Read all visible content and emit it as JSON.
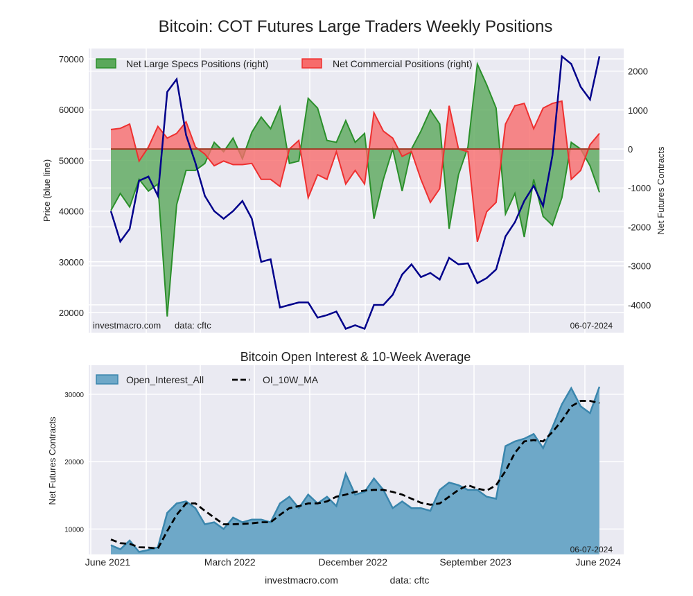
{
  "title": "Bitcoin: COT Futures Large Traders Weekly Positions",
  "colors": {
    "background": "#eaeaf2",
    "price": "#00008b",
    "specs_fill": "#5aa85a",
    "specs_line": "#2a8f2a",
    "comm_fill": "#f76b6b",
    "comm_line": "#ee3030",
    "oi_fill": "#6ea8c8",
    "oi_line": "#3a86ad",
    "ma_line": "#000000"
  },
  "chart_data": [
    {
      "type": "line",
      "title": "Bitcoin: COT Futures Large Traders Weekly Positions",
      "ylabel": "Price (blue line)",
      "y2label": "Net Futures Contracts",
      "ylim": [
        16040,
        72050
      ],
      "y2lim": [
        -4715,
        2580
      ],
      "yticks": [
        "20000",
        "30000",
        "40000",
        "50000",
        "60000",
        "70000"
      ],
      "y2ticks": [
        "-4000",
        "-3000",
        "-2000",
        "-1000",
        "0",
        "1000",
        "2000"
      ],
      "grid": true,
      "legend_position": "top-left",
      "legend": [
        "Net Large Specs Positions (right)",
        "Net Commercial Positions (right)"
      ],
      "annotations": {
        "source": "investmacro.com",
        "data": "data: cftc",
        "date": "06-07-2024"
      },
      "x": [
        "2021-06-08",
        "2021-06-29",
        "2021-07-20",
        "2021-08-10",
        "2021-08-31",
        "2021-09-21",
        "2021-10-12",
        "2021-11-02",
        "2021-11-23",
        "2021-12-14",
        "2022-01-04",
        "2022-01-25",
        "2022-02-15",
        "2022-03-08",
        "2022-03-29",
        "2022-04-19",
        "2022-05-10",
        "2022-05-31",
        "2022-06-21",
        "2022-07-12",
        "2022-08-02",
        "2022-08-23",
        "2022-09-13",
        "2022-10-04",
        "2022-10-25",
        "2022-11-15",
        "2022-12-06",
        "2022-12-27",
        "2023-01-17",
        "2023-02-07",
        "2023-02-28",
        "2023-03-21",
        "2023-04-11",
        "2023-05-02",
        "2023-05-23",
        "2023-06-13",
        "2023-07-04",
        "2023-07-25",
        "2023-08-15",
        "2023-09-05",
        "2023-09-26",
        "2023-10-17",
        "2023-11-07",
        "2023-11-28",
        "2023-12-19",
        "2024-01-09",
        "2024-01-30",
        "2024-02-20",
        "2024-03-12",
        "2024-04-02",
        "2024-04-23",
        "2024-05-14",
        "2024-06-04"
      ],
      "series": [
        {
          "name": "Price (blue line)",
          "axis": "left",
          "values": [
            40000,
            34000,
            36500,
            46000,
            46800,
            43000,
            63500,
            66000,
            55000,
            49500,
            43000,
            40000,
            38500,
            40000,
            42000,
            38500,
            30000,
            30500,
            21000,
            21500,
            22000,
            22000,
            19000,
            19500,
            20200,
            16800,
            17500,
            16800,
            21500,
            21500,
            23500,
            27500,
            29500,
            27000,
            27800,
            26500,
            30800,
            29500,
            29700,
            25800,
            26800,
            28500,
            35000,
            37800,
            42000,
            45000,
            41000,
            51000,
            70500,
            69000,
            64500,
            62000,
            70500
          ]
        },
        {
          "name": "Net Large Specs Positions (right)",
          "axis": "right",
          "values": [
            -1580,
            -1140,
            -1490,
            -780,
            -1080,
            -900,
            -4300,
            -1430,
            -550,
            -550,
            -370,
            170,
            -70,
            280,
            -250,
            430,
            820,
            520,
            1080,
            -370,
            -310,
            1300,
            1050,
            220,
            170,
            730,
            170,
            400,
            -1790,
            -780,
            0,
            -1080,
            0,
            460,
            1000,
            640,
            -2050,
            -660,
            50,
            2180,
            1650,
            1050,
            -1670,
            -1140,
            -2260,
            -780,
            -1730,
            -1960,
            -1250,
            170,
            0,
            -430,
            -1110
          ]
        },
        {
          "name": "Net Commercial Positions (right)",
          "axis": "right",
          "values": [
            500,
            530,
            640,
            -310,
            50,
            580,
            280,
            400,
            700,
            50,
            -130,
            -430,
            -310,
            -400,
            -400,
            -370,
            -780,
            -780,
            -960,
            0,
            220,
            -1250,
            -660,
            -780,
            -70,
            -900,
            -550,
            -900,
            930,
            460,
            280,
            -190,
            -70,
            -780,
            -1370,
            -1020,
            1110,
            0,
            -70,
            -2380,
            -1610,
            -1370,
            640,
            1110,
            1170,
            520,
            1050,
            1170,
            1230,
            -780,
            -550,
            110,
            400
          ]
        }
      ]
    },
    {
      "type": "area",
      "title": "Bitcoin Open Interest & 10-Week Average",
      "ylabel": "Net Futures Contracts",
      "ylim": [
        6230,
        34300
      ],
      "yticks": [
        "10000",
        "20000",
        "30000"
      ],
      "xticks": [
        "June 2021",
        "March 2022",
        "December 2022",
        "September 2023",
        "June 2024"
      ],
      "xtick_dates": [
        "2021-06-01",
        "2022-03-01",
        "2022-12-01",
        "2023-09-01",
        "2024-06-01"
      ],
      "grid": true,
      "legend_position": "top-left",
      "legend": [
        "Open_Interest_All",
        "OI_10W_MA"
      ],
      "annotations": {
        "date": "06-07-2024",
        "source": "investmacro.com",
        "data": "data: cftc"
      },
      "series": [
        {
          "name": "Open_Interest_All",
          "values": [
            7600,
            7000,
            8300,
            6600,
            6900,
            7300,
            12400,
            13800,
            14100,
            13100,
            10700,
            11000,
            10000,
            11700,
            11000,
            11400,
            11400,
            11000,
            13800,
            14800,
            13100,
            15100,
            13800,
            14800,
            13400,
            18200,
            15100,
            15500,
            17500,
            15800,
            13100,
            14100,
            13100,
            13100,
            12700,
            15800,
            16900,
            16500,
            15800,
            15800,
            14800,
            14500,
            22300,
            23000,
            23400,
            24100,
            22000,
            25100,
            28500,
            30900,
            28200,
            27200,
            31100
          ]
        },
        {
          "name": "OI_10W_MA",
          "values": [
            8450,
            7900,
            7800,
            7300,
            7250,
            7100,
            9700,
            12100,
            13800,
            13800,
            12700,
            11700,
            10700,
            10700,
            10750,
            10850,
            11000,
            11000,
            12100,
            13100,
            13400,
            13800,
            13800,
            14100,
            14800,
            15100,
            15500,
            15700,
            15800,
            15800,
            15500,
            15100,
            14500,
            13900,
            13600,
            13800,
            14800,
            15800,
            16500,
            16000,
            15700,
            16500,
            18600,
            21300,
            23000,
            23200,
            23000,
            24400,
            26100,
            28200,
            29000,
            29000,
            28700
          ]
        }
      ]
    }
  ]
}
